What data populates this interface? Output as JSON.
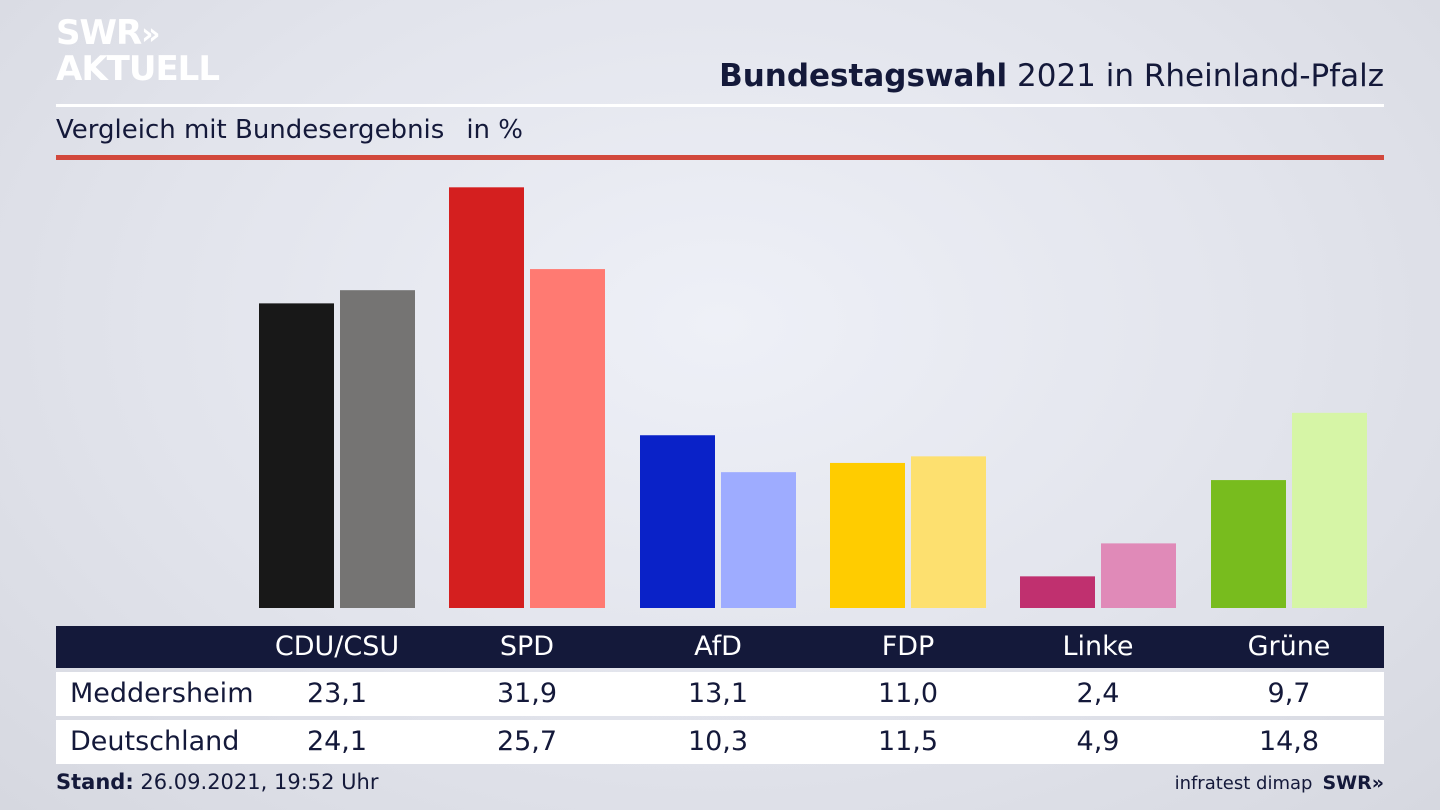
{
  "logo": {
    "line1": "SWR",
    "line1_chevrons": "»",
    "line2": "AKTUELL"
  },
  "header": {
    "title_bold": "Bundestagswahl",
    "title_rest": " 2021 in Rheinland-Pfalz",
    "subtitle": "Vergleich mit Bundesergebnis",
    "unit": "in %"
  },
  "table": {
    "columns": [
      "CDU/CSU",
      "SPD",
      "AfD",
      "FDP",
      "Linke",
      "Grüne"
    ],
    "rows": [
      {
        "label": "Meddersheim",
        "values": [
          "23,1",
          "31,9",
          "13,1",
          "11,0",
          "2,4",
          "9,7"
        ]
      },
      {
        "label": "Deutschland",
        "values": [
          "24,1",
          "25,7",
          "10,3",
          "11,5",
          "4,9",
          "14,8"
        ]
      }
    ]
  },
  "footer": {
    "stand_label": "Stand:",
    "stand_value": " 26.09.2021, 19:52 Uhr",
    "source": "infratest dimap",
    "brand": "SWR»"
  },
  "chart_data": {
    "type": "bar",
    "categories": [
      "CDU/CSU",
      "SPD",
      "AfD",
      "FDP",
      "Linke",
      "Grüne"
    ],
    "series": [
      {
        "name": "Meddersheim",
        "values": [
          23.1,
          31.9,
          13.1,
          11.0,
          2.4,
          9.7
        ],
        "colors": [
          "#181818",
          "#d41f1f",
          "#0a22c8",
          "#ffcc00",
          "#c0306f",
          "#78bc1e"
        ]
      },
      {
        "name": "Deutschland",
        "values": [
          24.1,
          25.7,
          10.3,
          11.5,
          4.9,
          14.8
        ],
        "colors": [
          "#757473",
          "#ff7a72",
          "#9eacff",
          "#fde06f",
          "#e08ab8",
          "#d6f5a6"
        ]
      }
    ],
    "ylim": [
      0,
      32
    ]
  }
}
